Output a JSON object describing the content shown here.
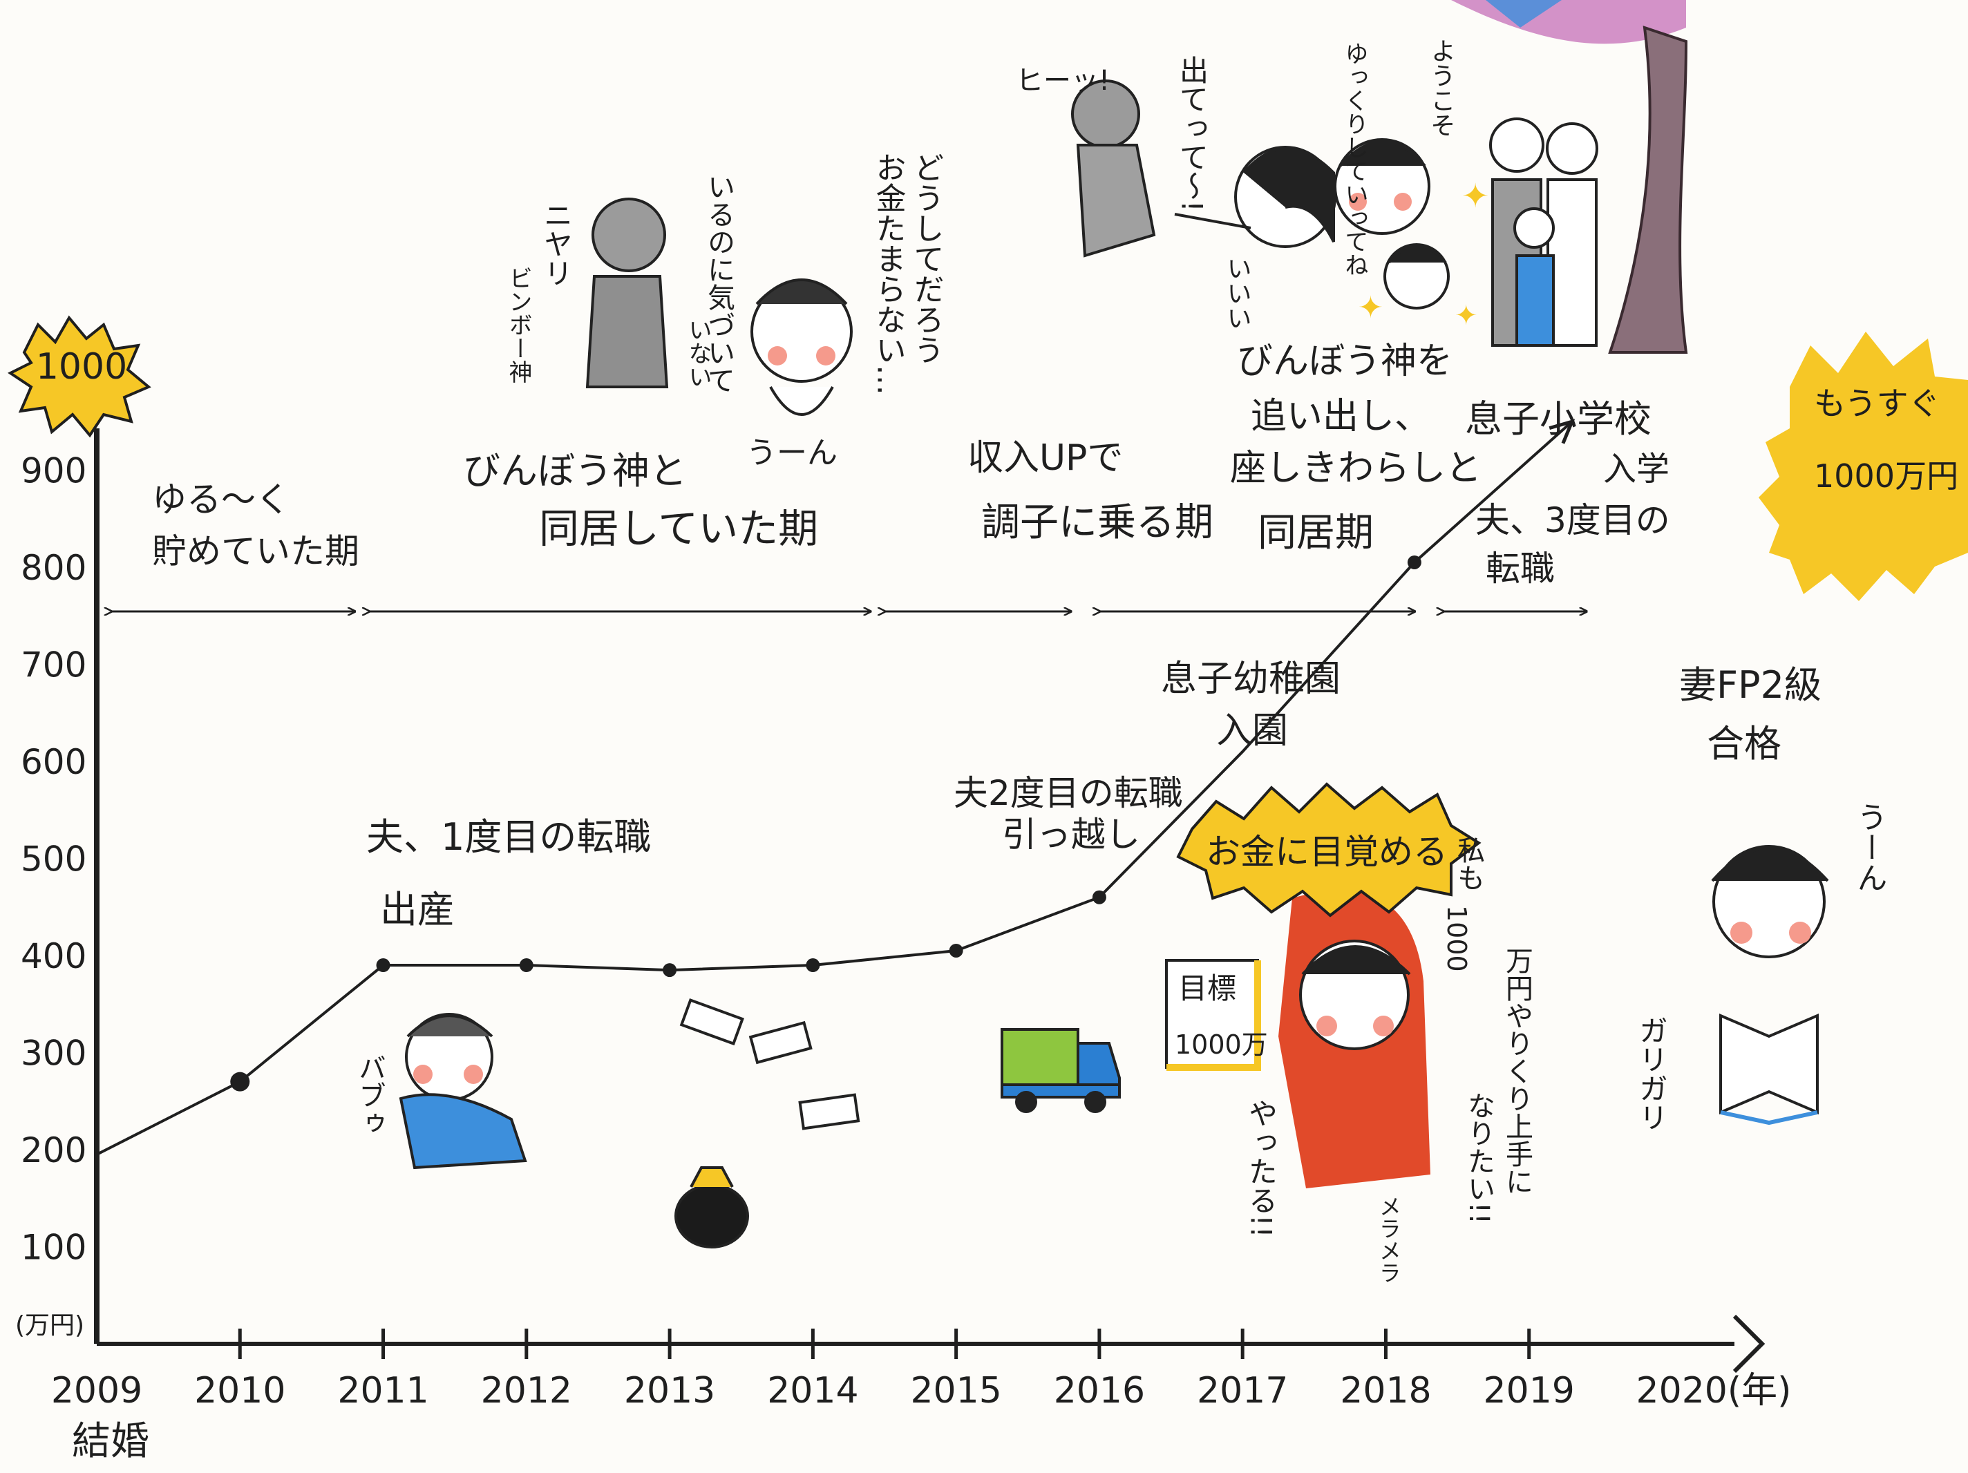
{
  "chart_data": {
    "type": "line",
    "series": [
      {
        "x": [
          2009,
          2010,
          2011,
          2012,
          2013,
          2014,
          2015,
          2016,
          2016.3,
          2017,
          2018.2,
          2019.3
        ],
        "y": [
          195,
          270,
          390,
          390,
          385,
          390,
          405,
          460,
          505,
          610,
          805,
          950
        ],
        "markers": [
          false,
          true,
          true,
          true,
          true,
          true,
          true,
          true,
          false,
          false,
          true,
          false
        ]
      }
    ],
    "x_ticks": [
      "2009",
      "2010",
      "2011",
      "2012",
      "2013",
      "2014",
      "2015",
      "2016",
      "2017",
      "2018",
      "2019",
      "2020(年)"
    ],
    "x_tick_values": [
      2009,
      2010,
      2011,
      2012,
      2013,
      2014,
      2015,
      2016,
      2017,
      2018,
      2019,
      2020
    ],
    "y_ticks": [
      "100",
      "200",
      "300",
      "400",
      "500",
      "600",
      "700",
      "800",
      "900",
      "1000"
    ],
    "y_tick_values": [
      100,
      200,
      300,
      400,
      500,
      600,
      700,
      800,
      900,
      1000
    ],
    "ylabel": "(万円)",
    "xlim": [
      2009,
      2020
    ],
    "ylim": [
      0,
      1000
    ],
    "grid": false,
    "x_sublabel": "結婚",
    "periods": [
      {
        "label_lines": [
          "ゆる〜く",
          "貯めていた期"
        ],
        "from": 2009.1,
        "to": 2010.8
      },
      {
        "label_lines": [
          "びんぼう神と",
          "同居していた期"
        ],
        "from": 2010.9,
        "to": 2014.4
      },
      {
        "label_lines": [
          "収入UPで",
          "調子に乗る期"
        ],
        "from": 2014.5,
        "to": 2015.8
      },
      {
        "label_lines": [
          "びんぼう神を",
          "追い出し、",
          "座しきわらしと",
          "同居期"
        ],
        "from": 2016.0,
        "to": 2018.2
      },
      {
        "label_lines": [],
        "from": 2018.4,
        "to": 2019.4
      }
    ],
    "annotations": [
      {
        "lines": [
          "夫、1度目の転職",
          "出産"
        ]
      },
      {
        "lines": [
          "夫2度目の転職",
          "引っ越し"
        ]
      },
      {
        "lines": [
          "息子幼稚園",
          "入園"
        ]
      },
      {
        "lines": [
          "お金に目覚める"
        ]
      },
      {
        "lines": [
          "夫、3度目の",
          "転職"
        ]
      },
      {
        "lines": [
          "息子小学校",
          "入学"
        ]
      },
      {
        "lines": [
          "妻FP2級",
          "合格"
        ]
      },
      {
        "lines": [
          "もうすぐ",
          "1000万円"
        ]
      },
      {
        "lines": [
          "目標",
          "1000万"
        ]
      }
    ],
    "speech": {
      "nyari": "ニヤリ",
      "binbogami": "ビンボー神",
      "irunoni": [
        "いるのに気づいて",
        "いない"
      ],
      "doushite": [
        "どうしてだろう",
        "お金たまらない…"
      ],
      "uun": "うーん",
      "hii": "ヒーッ!",
      "detette": "出てって〜!",
      "yukkuri": "ゆっくりしていってね",
      "youkoso": "ようこそ",
      "iii": "いいい",
      "watashimo": [
        "私も",
        "1000",
        "万円やりくり上手に",
        "なりたい!!"
      ],
      "yattaru": "やったる!!",
      "meramera": "メラメラ",
      "uun2": "うーん",
      "garigari": "ガリガリ",
      "babu": "バブゥ"
    },
    "colors": {
      "yellow": "#f6c726",
      "blue": "#3d8fdc",
      "red": "#e14a2a",
      "truck_green": "#8ec63f",
      "truck_blue": "#2b7fd2",
      "blossom": "#c46fb7",
      "cheek": "#f59a8c"
    }
  }
}
